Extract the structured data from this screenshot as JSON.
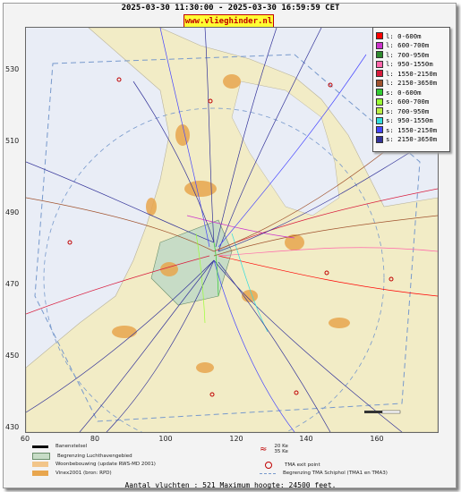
{
  "title": "2025-03-30 11:30:00 - 2025-03-30 16:59:59 CET",
  "url": "www.vlieghinder.nl",
  "y_ticks": [
    "530",
    "510",
    "490",
    "470",
    "450",
    "430"
  ],
  "x_ticks": [
    "60",
    "80",
    "100",
    "120",
    "140",
    "160"
  ],
  "legend": [
    {
      "label": "l: 0-600m",
      "color": "#ff0000"
    },
    {
      "label": "l: 600-700m",
      "color": "#cc33cc"
    },
    {
      "label": "l: 700-950m",
      "color": "#2f8b2f"
    },
    {
      "label": "l: 950-1550m",
      "color": "#ff66aa"
    },
    {
      "label": "l: 1550-2150m",
      "color": "#d81b3c"
    },
    {
      "label": "l: 2150-3650m",
      "color": "#a0522d"
    },
    {
      "label": "s: 0-600m",
      "color": "#33cc33"
    },
    {
      "label": "s: 600-700m",
      "color": "#99ff33"
    },
    {
      "label": "s: 700-950m",
      "color": "#bbee44"
    },
    {
      "label": "s: 950-1550m",
      "color": "#33dddd"
    },
    {
      "label": "s: 1550-2150m",
      "color": "#4444ff"
    },
    {
      "label": "s: 2150-3650m",
      "color": "#333399"
    }
  ],
  "bottom_legend": {
    "runways": "Banenstelsel",
    "airport_boundary": "Begrenzing Luchthavengebied",
    "housing": "Woonbebouwing (update RWS-MD 2001)",
    "vinex": "Vinex2001 (bron: RPD)",
    "noise_contours_1": "20 Ke",
    "noise_contours_2": "35 Ke",
    "tma_exit": "TMA exit point",
    "tma_boundary": "Begrenzing TMA Schiphol  (TMA1 en TMA3)"
  },
  "footer": "Aantal vluchten : 521 Maximum hoogte: 24500 feet.",
  "map_colors": {
    "sea": "#e9edf6",
    "land": "#f2ecc6",
    "airport": "#c7dcc6",
    "dunes": "#d9e6c2",
    "housing": "#e8a64e"
  }
}
